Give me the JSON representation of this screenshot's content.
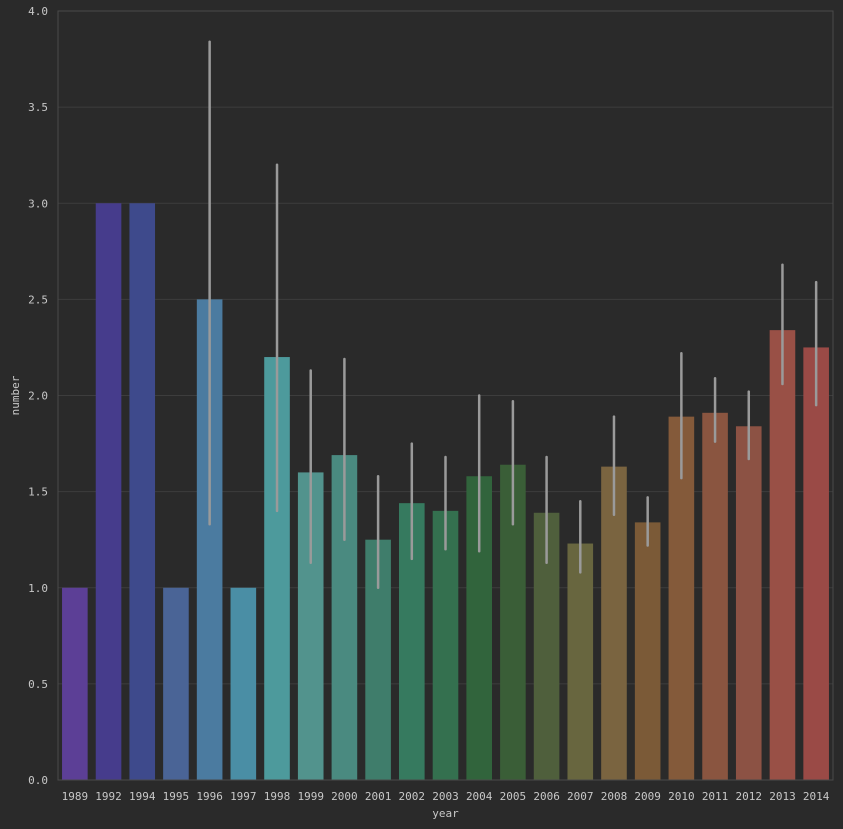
{
  "chart_data": {
    "type": "bar",
    "xlabel": "year",
    "ylabel": "number",
    "ylim": [
      0,
      4.0
    ],
    "yticks": [
      "0.0",
      "0.5",
      "1.0",
      "1.5",
      "2.0",
      "2.5",
      "3.0",
      "3.5",
      "4.0"
    ],
    "grid": true,
    "categories": [
      "1989",
      "1992",
      "1994",
      "1995",
      "1996",
      "1997",
      "1998",
      "1999",
      "2000",
      "2001",
      "2002",
      "2003",
      "2004",
      "2005",
      "2006",
      "2007",
      "2008",
      "2009",
      "2010",
      "2011",
      "2012",
      "2013",
      "2014"
    ],
    "values": [
      1.0,
      3.0,
      3.0,
      1.0,
      2.5,
      1.0,
      2.2,
      1.6,
      1.69,
      1.25,
      1.44,
      1.4,
      1.58,
      1.64,
      1.39,
      1.23,
      1.63,
      1.34,
      1.89,
      1.91,
      1.84,
      2.34,
      2.25
    ],
    "error_low": [
      null,
      null,
      null,
      null,
      1.33,
      null,
      1.4,
      1.13,
      1.25,
      1.0,
      1.15,
      1.2,
      1.19,
      1.33,
      1.13,
      1.08,
      1.38,
      1.22,
      1.57,
      1.76,
      1.67,
      2.06,
      1.95
    ],
    "error_high": [
      null,
      null,
      null,
      null,
      3.84,
      null,
      3.2,
      2.13,
      2.19,
      1.58,
      1.75,
      1.68,
      2.0,
      1.97,
      1.68,
      1.45,
      1.89,
      1.47,
      2.22,
      2.09,
      2.02,
      2.68,
      2.59
    ],
    "colors": [
      "#5c3f96",
      "#463c8c",
      "#3e4a8c",
      "#4a6496",
      "#4b7ba0",
      "#4a8ea5",
      "#4d9a9c",
      "#52938d",
      "#4a8a80",
      "#3f7d6b",
      "#367a5f",
      "#34704f",
      "#31643c",
      "#3a5e37",
      "#4f5f3c",
      "#68663f",
      "#7a6440",
      "#7b5a37",
      "#845a3a",
      "#8a5540",
      "#8c5244",
      "#995046",
      "#9a4a46"
    ]
  }
}
